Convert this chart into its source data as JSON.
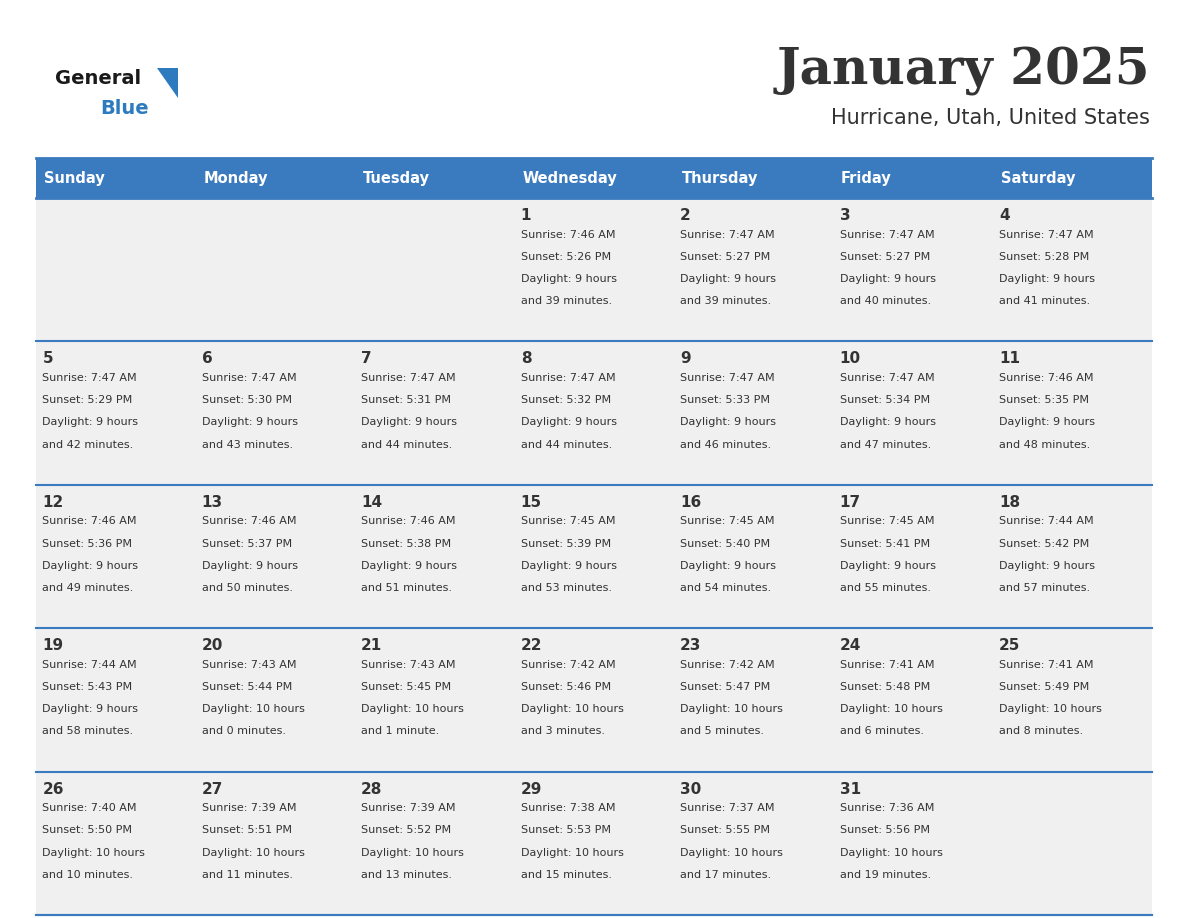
{
  "title": "January 2025",
  "subtitle": "Hurricane, Utah, United States",
  "header_bg_color": "#3a7abf",
  "header_text_color": "#ffffff",
  "cell_bg_color": "#f0f0f0",
  "grid_line_color": "#3a7abf",
  "text_color": "#333333",
  "days_of_week": [
    "Sunday",
    "Monday",
    "Tuesday",
    "Wednesday",
    "Thursday",
    "Friday",
    "Saturday"
  ],
  "logo_general_color": "#1a1a1a",
  "logo_blue_color": "#2e7abf",
  "weeks": [
    [
      {
        "day": "",
        "sunrise": "",
        "sunset": "",
        "daylight": ""
      },
      {
        "day": "",
        "sunrise": "",
        "sunset": "",
        "daylight": ""
      },
      {
        "day": "",
        "sunrise": "",
        "sunset": "",
        "daylight": ""
      },
      {
        "day": "1",
        "sunrise": "7:46 AM",
        "sunset": "5:26 PM",
        "daylight": "9 hours and 39 minutes."
      },
      {
        "day": "2",
        "sunrise": "7:47 AM",
        "sunset": "5:27 PM",
        "daylight": "9 hours and 39 minutes."
      },
      {
        "day": "3",
        "sunrise": "7:47 AM",
        "sunset": "5:27 PM",
        "daylight": "9 hours and 40 minutes."
      },
      {
        "day": "4",
        "sunrise": "7:47 AM",
        "sunset": "5:28 PM",
        "daylight": "9 hours and 41 minutes."
      }
    ],
    [
      {
        "day": "5",
        "sunrise": "7:47 AM",
        "sunset": "5:29 PM",
        "daylight": "9 hours and 42 minutes."
      },
      {
        "day": "6",
        "sunrise": "7:47 AM",
        "sunset": "5:30 PM",
        "daylight": "9 hours and 43 minutes."
      },
      {
        "day": "7",
        "sunrise": "7:47 AM",
        "sunset": "5:31 PM",
        "daylight": "9 hours and 44 minutes."
      },
      {
        "day": "8",
        "sunrise": "7:47 AM",
        "sunset": "5:32 PM",
        "daylight": "9 hours and 44 minutes."
      },
      {
        "day": "9",
        "sunrise": "7:47 AM",
        "sunset": "5:33 PM",
        "daylight": "9 hours and 46 minutes."
      },
      {
        "day": "10",
        "sunrise": "7:47 AM",
        "sunset": "5:34 PM",
        "daylight": "9 hours and 47 minutes."
      },
      {
        "day": "11",
        "sunrise": "7:46 AM",
        "sunset": "5:35 PM",
        "daylight": "9 hours and 48 minutes."
      }
    ],
    [
      {
        "day": "12",
        "sunrise": "7:46 AM",
        "sunset": "5:36 PM",
        "daylight": "9 hours and 49 minutes."
      },
      {
        "day": "13",
        "sunrise": "7:46 AM",
        "sunset": "5:37 PM",
        "daylight": "9 hours and 50 minutes."
      },
      {
        "day": "14",
        "sunrise": "7:46 AM",
        "sunset": "5:38 PM",
        "daylight": "9 hours and 51 minutes."
      },
      {
        "day": "15",
        "sunrise": "7:45 AM",
        "sunset": "5:39 PM",
        "daylight": "9 hours and 53 minutes."
      },
      {
        "day": "16",
        "sunrise": "7:45 AM",
        "sunset": "5:40 PM",
        "daylight": "9 hours and 54 minutes."
      },
      {
        "day": "17",
        "sunrise": "7:45 AM",
        "sunset": "5:41 PM",
        "daylight": "9 hours and 55 minutes."
      },
      {
        "day": "18",
        "sunrise": "7:44 AM",
        "sunset": "5:42 PM",
        "daylight": "9 hours and 57 minutes."
      }
    ],
    [
      {
        "day": "19",
        "sunrise": "7:44 AM",
        "sunset": "5:43 PM",
        "daylight": "9 hours and 58 minutes."
      },
      {
        "day": "20",
        "sunrise": "7:43 AM",
        "sunset": "5:44 PM",
        "daylight": "10 hours and 0 minutes."
      },
      {
        "day": "21",
        "sunrise": "7:43 AM",
        "sunset": "5:45 PM",
        "daylight": "10 hours and 1 minute."
      },
      {
        "day": "22",
        "sunrise": "7:42 AM",
        "sunset": "5:46 PM",
        "daylight": "10 hours and 3 minutes."
      },
      {
        "day": "23",
        "sunrise": "7:42 AM",
        "sunset": "5:47 PM",
        "daylight": "10 hours and 5 minutes."
      },
      {
        "day": "24",
        "sunrise": "7:41 AM",
        "sunset": "5:48 PM",
        "daylight": "10 hours and 6 minutes."
      },
      {
        "day": "25",
        "sunrise": "7:41 AM",
        "sunset": "5:49 PM",
        "daylight": "10 hours and 8 minutes."
      }
    ],
    [
      {
        "day": "26",
        "sunrise": "7:40 AM",
        "sunset": "5:50 PM",
        "daylight": "10 hours and 10 minutes."
      },
      {
        "day": "27",
        "sunrise": "7:39 AM",
        "sunset": "5:51 PM",
        "daylight": "10 hours and 11 minutes."
      },
      {
        "day": "28",
        "sunrise": "7:39 AM",
        "sunset": "5:52 PM",
        "daylight": "10 hours and 13 minutes."
      },
      {
        "day": "29",
        "sunrise": "7:38 AM",
        "sunset": "5:53 PM",
        "daylight": "10 hours and 15 minutes."
      },
      {
        "day": "30",
        "sunrise": "7:37 AM",
        "sunset": "5:55 PM",
        "daylight": "10 hours and 17 minutes."
      },
      {
        "day": "31",
        "sunrise": "7:36 AM",
        "sunset": "5:56 PM",
        "daylight": "10 hours and 19 minutes."
      },
      {
        "day": "",
        "sunrise": "",
        "sunset": "",
        "daylight": ""
      }
    ]
  ]
}
